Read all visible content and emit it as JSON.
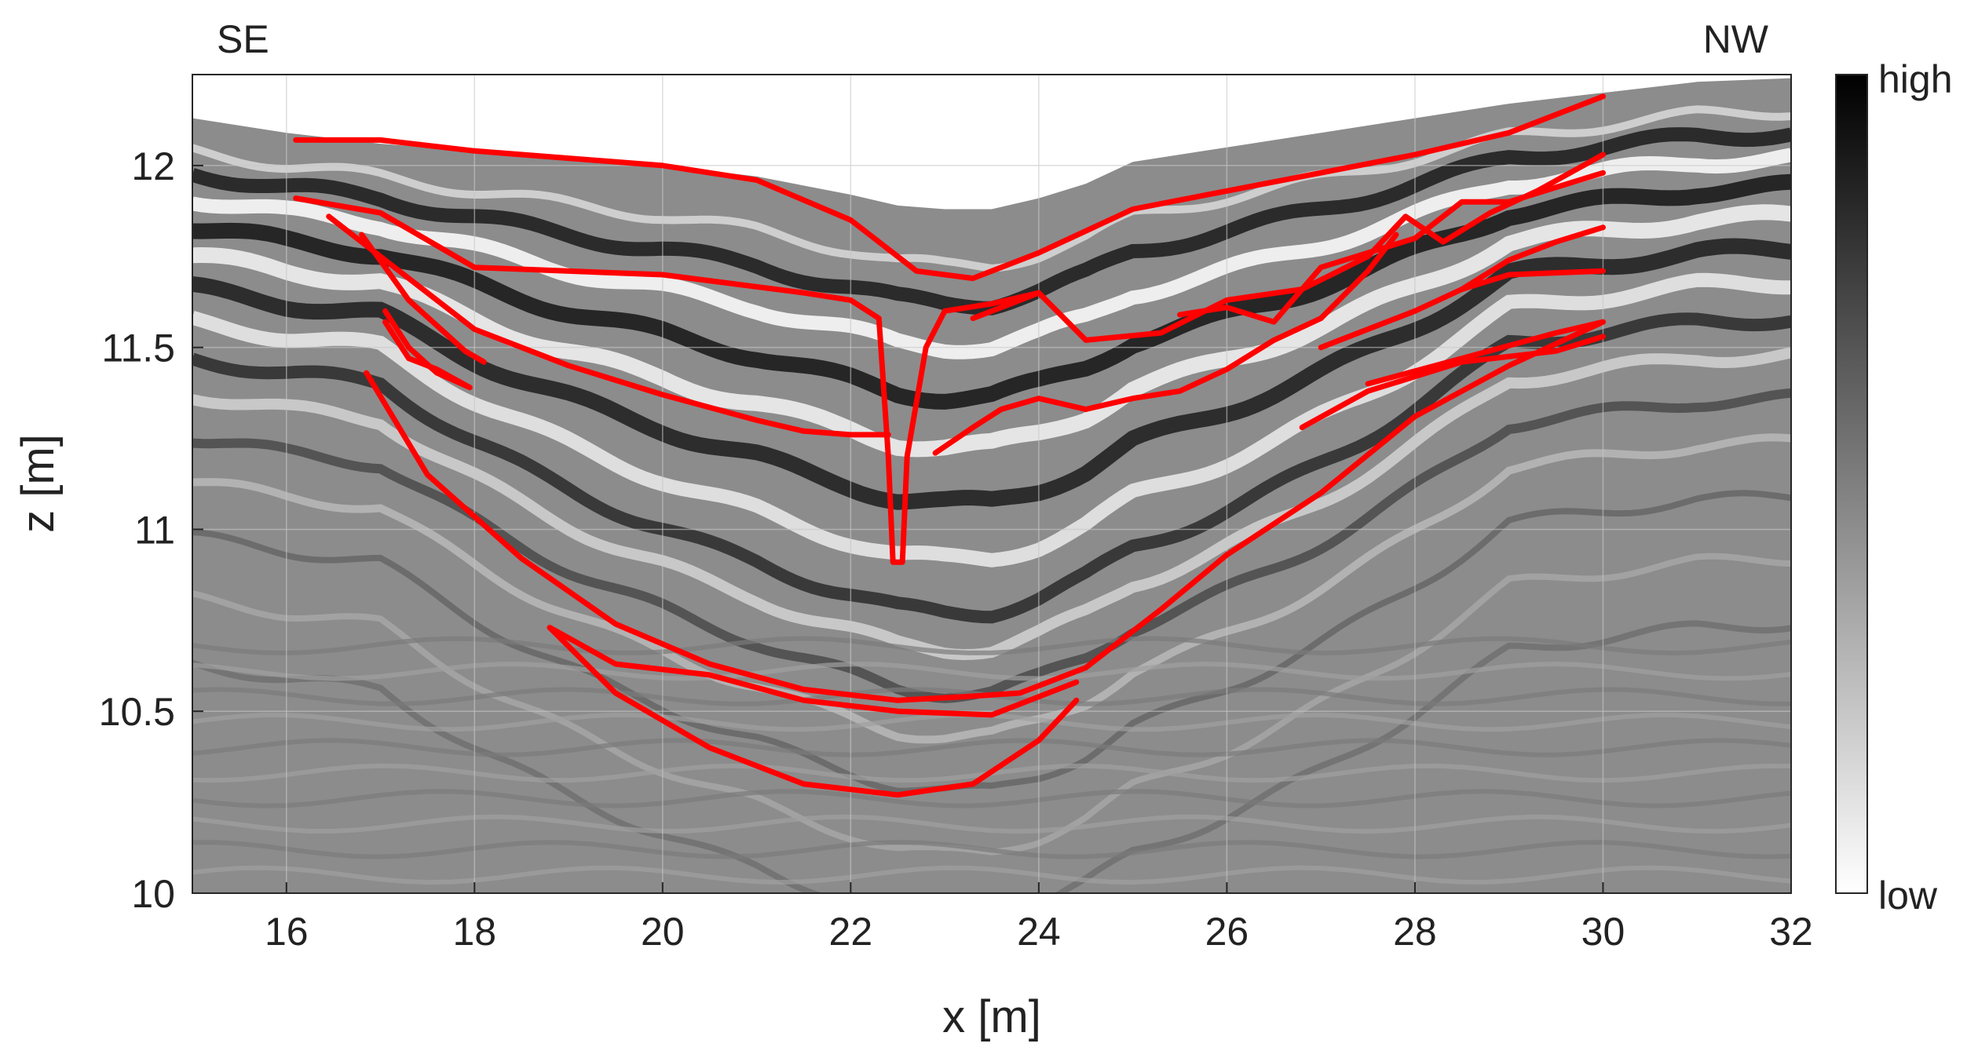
{
  "chart_data": {
    "type": "radargram",
    "xlabel": "x [m]",
    "ylabel": "z [m]",
    "xlim": [
      15,
      32
    ],
    "ylim": [
      10,
      12.25
    ],
    "xticks": [
      16,
      18,
      20,
      22,
      24,
      26,
      28,
      30,
      32
    ],
    "yticks": [
      10,
      10.5,
      11,
      11.5,
      12
    ],
    "xtick_labels": [
      "16",
      "18",
      "20",
      "22",
      "24",
      "26",
      "28",
      "30",
      "32"
    ],
    "ytick_labels": [
      "10",
      "10.5",
      "11",
      "11.5",
      "12"
    ],
    "grid": true,
    "direction_labels": {
      "left": "SE",
      "right": "NW"
    },
    "colorbar": {
      "colormap": "gray",
      "top_label": "high",
      "bottom_label": "low"
    },
    "colors": {
      "interpretation": "#ff0000",
      "grid": "#c8c8c8",
      "axis": "#262626"
    },
    "surface": [
      [
        15.0,
        12.13
      ],
      [
        16.0,
        12.09
      ],
      [
        17.0,
        12.06
      ],
      [
        18.0,
        12.04
      ],
      [
        19.0,
        12.02
      ],
      [
        20.0,
        12.0
      ],
      [
        21.0,
        11.97
      ],
      [
        22.0,
        11.92
      ],
      [
        22.5,
        11.89
      ],
      [
        23.0,
        11.88
      ],
      [
        23.5,
        11.88
      ],
      [
        24.0,
        11.91
      ],
      [
        24.5,
        11.95
      ],
      [
        25.0,
        12.01
      ],
      [
        26.0,
        12.05
      ],
      [
        27.0,
        12.09
      ],
      [
        28.0,
        12.13
      ],
      [
        29.0,
        12.17
      ],
      [
        30.0,
        12.2
      ],
      [
        31.0,
        12.23
      ],
      [
        32.0,
        12.24
      ]
    ],
    "interpretation_lines": [
      {
        "points": [
          [
            16.1,
            12.07
          ],
          [
            17.0,
            12.07
          ],
          [
            18.0,
            12.04
          ],
          [
            19.0,
            12.02
          ],
          [
            20.0,
            12.0
          ],
          [
            21.0,
            11.96
          ],
          [
            22.0,
            11.85
          ],
          [
            22.7,
            11.71
          ],
          [
            23.3,
            11.69
          ],
          [
            24.0,
            11.76
          ],
          [
            25.0,
            11.88
          ],
          [
            26.0,
            11.93
          ],
          [
            27.0,
            11.98
          ],
          [
            28.0,
            12.03
          ],
          [
            29.0,
            12.09
          ],
          [
            30.0,
            12.19
          ]
        ]
      },
      {
        "points": [
          [
            16.1,
            11.91
          ],
          [
            17.0,
            11.87
          ],
          [
            18.0,
            11.72
          ],
          [
            20.0,
            11.7
          ],
          [
            21.5,
            11.65
          ],
          [
            22.0,
            11.63
          ],
          [
            22.3,
            11.58
          ],
          [
            22.4,
            11.2
          ],
          [
            22.45,
            10.91
          ],
          [
            22.55,
            10.91
          ],
          [
            22.6,
            11.2
          ],
          [
            22.8,
            11.5
          ],
          [
            23.0,
            11.6
          ],
          [
            23.5,
            11.62
          ],
          [
            24.0,
            11.65
          ]
        ]
      },
      {
        "points": [
          [
            16.45,
            11.86
          ],
          [
            17.0,
            11.75
          ],
          [
            18.0,
            11.55
          ],
          [
            19.0,
            11.45
          ],
          [
            20.0,
            11.37
          ],
          [
            21.0,
            11.3
          ],
          [
            21.5,
            11.27
          ],
          [
            22.0,
            11.26
          ],
          [
            22.4,
            11.26
          ]
        ]
      },
      {
        "points": [
          [
            16.8,
            11.81
          ],
          [
            17.3,
            11.63
          ],
          [
            17.9,
            11.49
          ],
          [
            18.1,
            11.46
          ]
        ]
      },
      {
        "points": [
          [
            17.05,
            11.6
          ],
          [
            17.3,
            11.5
          ],
          [
            17.6,
            11.43
          ],
          [
            17.95,
            11.39
          ],
          [
            17.6,
            11.44
          ],
          [
            17.3,
            11.47
          ],
          [
            17.05,
            11.57
          ]
        ]
      },
      {
        "points": [
          [
            16.85,
            11.43
          ],
          [
            17.5,
            11.15
          ],
          [
            18.5,
            10.92
          ],
          [
            19.5,
            10.74
          ],
          [
            20.5,
            10.63
          ],
          [
            21.5,
            10.56
          ],
          [
            22.5,
            10.53
          ],
          [
            23.2,
            10.54
          ],
          [
            23.8,
            10.55
          ],
          [
            24.5,
            10.62
          ],
          [
            25.3,
            10.78
          ],
          [
            26.0,
            10.93
          ],
          [
            27.0,
            11.1
          ],
          [
            28.0,
            11.31
          ],
          [
            29.0,
            11.45
          ],
          [
            30.0,
            11.57
          ]
        ]
      },
      {
        "points": [
          [
            18.8,
            10.73
          ],
          [
            19.5,
            10.63
          ],
          [
            20.5,
            10.6
          ],
          [
            21.5,
            10.53
          ],
          [
            22.5,
            10.5
          ],
          [
            23.5,
            10.49
          ],
          [
            24.4,
            10.58
          ]
        ]
      },
      {
        "points": [
          [
            18.8,
            10.73
          ],
          [
            19.5,
            10.55
          ],
          [
            20.5,
            10.4
          ],
          [
            21.5,
            10.3
          ],
          [
            22.5,
            10.27
          ],
          [
            23.3,
            10.3
          ],
          [
            24.0,
            10.42
          ],
          [
            24.4,
            10.53
          ]
        ]
      },
      {
        "points": [
          [
            22.9,
            11.21
          ],
          [
            23.3,
            11.28
          ],
          [
            23.6,
            11.33
          ],
          [
            24.0,
            11.36
          ],
          [
            24.5,
            11.33
          ],
          [
            25.0,
            11.36
          ],
          [
            25.5,
            11.38
          ],
          [
            26.0,
            11.44
          ],
          [
            26.5,
            11.52
          ],
          [
            27.0,
            11.58
          ],
          [
            27.5,
            11.71
          ],
          [
            27.8,
            11.81
          ]
        ]
      },
      {
        "points": [
          [
            23.3,
            11.58
          ],
          [
            24.0,
            11.65
          ],
          [
            24.5,
            11.52
          ],
          [
            25.3,
            11.54
          ],
          [
            26.0,
            11.63
          ],
          [
            26.8,
            11.66
          ],
          [
            27.5,
            11.75
          ],
          [
            27.9,
            11.86
          ],
          [
            28.3,
            11.79
          ],
          [
            28.8,
            11.87
          ],
          [
            29.3,
            11.93
          ],
          [
            30.0,
            12.03
          ]
        ]
      },
      {
        "points": [
          [
            25.5,
            11.59
          ],
          [
            26.0,
            11.61
          ],
          [
            26.5,
            11.57
          ],
          [
            27.0,
            11.72
          ],
          [
            28.0,
            11.8
          ],
          [
            28.5,
            11.9
          ],
          [
            29.0,
            11.9
          ],
          [
            30.0,
            11.98
          ]
        ]
      },
      {
        "points": [
          [
            26.8,
            11.28
          ],
          [
            27.5,
            11.38
          ],
          [
            28.5,
            11.46
          ],
          [
            29.5,
            11.49
          ],
          [
            30.0,
            11.53
          ]
        ]
      },
      {
        "points": [
          [
            27.5,
            11.4
          ],
          [
            28.5,
            11.47
          ],
          [
            29.5,
            11.54
          ],
          [
            30.0,
            11.57
          ]
        ]
      },
      {
        "points": [
          [
            27.0,
            11.5
          ],
          [
            28.0,
            11.6
          ],
          [
            28.5,
            11.66
          ],
          [
            29.0,
            11.7
          ],
          [
            30.0,
            11.71
          ]
        ]
      },
      {
        "points": [
          [
            28.5,
            11.66
          ],
          [
            29.0,
            11.74
          ],
          [
            29.5,
            11.79
          ],
          [
            30.0,
            11.83
          ]
        ]
      }
    ]
  }
}
